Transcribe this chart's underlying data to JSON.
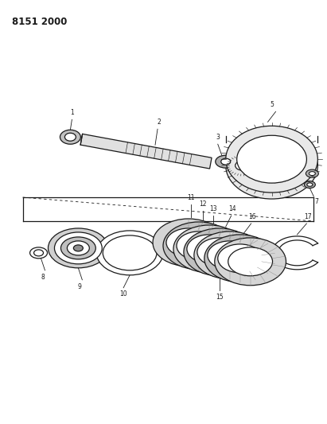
{
  "title": "8151 2000",
  "bg_color": "#ffffff",
  "line_color": "#1a1a1a",
  "fig_width": 4.11,
  "fig_height": 5.33,
  "dpi": 100,
  "layout": {
    "xlim": [
      0,
      411
    ],
    "ylim": [
      0,
      533
    ]
  }
}
